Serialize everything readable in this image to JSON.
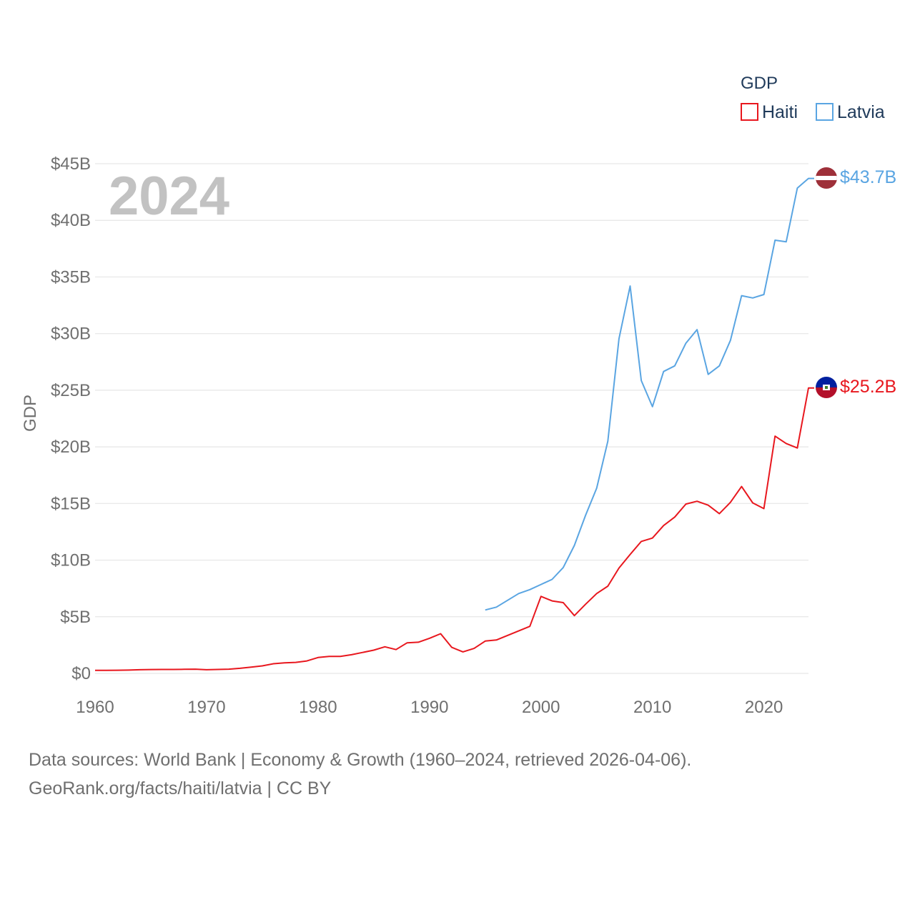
{
  "chart_data": {
    "type": "line",
    "title": "",
    "legend_title": "GDP",
    "ylabel": "GDP",
    "xlabel": "",
    "year_label": "2024",
    "xlim": [
      1960,
      2024
    ],
    "ylim": [
      0,
      45
    ],
    "y_ticks": [
      {
        "value": 0,
        "label": "$0"
      },
      {
        "value": 5,
        "label": "$5B"
      },
      {
        "value": 10,
        "label": "$10B"
      },
      {
        "value": 15,
        "label": "$15B"
      },
      {
        "value": 20,
        "label": "$20B"
      },
      {
        "value": 25,
        "label": "$25B"
      },
      {
        "value": 30,
        "label": "$30B"
      },
      {
        "value": 35,
        "label": "$35B"
      },
      {
        "value": 40,
        "label": "$40B"
      },
      {
        "value": 45,
        "label": "$45B"
      }
    ],
    "x_ticks": [
      {
        "value": 1960,
        "label": "1960"
      },
      {
        "value": 1970,
        "label": "1970"
      },
      {
        "value": 1980,
        "label": "1980"
      },
      {
        "value": 1990,
        "label": "1990"
      },
      {
        "value": 2000,
        "label": "2000"
      },
      {
        "value": 2010,
        "label": "2010"
      },
      {
        "value": 2020,
        "label": "2020"
      }
    ],
    "units": "USD billions",
    "series": [
      {
        "name": "Haiti",
        "color": "#e8171e",
        "end_label": "$25.2B",
        "flag": "haiti",
        "x": [
          1960,
          1961,
          1962,
          1963,
          1964,
          1965,
          1966,
          1967,
          1968,
          1969,
          1970,
          1971,
          1972,
          1973,
          1974,
          1975,
          1976,
          1977,
          1978,
          1979,
          1980,
          1981,
          1982,
          1983,
          1984,
          1985,
          1986,
          1987,
          1988,
          1989,
          1990,
          1991,
          1992,
          1993,
          1994,
          1995,
          1996,
          1997,
          1998,
          1999,
          2000,
          2001,
          2002,
          2003,
          2004,
          2005,
          2006,
          2007,
          2008,
          2009,
          2010,
          2011,
          2012,
          2013,
          2014,
          2015,
          2016,
          2017,
          2018,
          2019,
          2020,
          2021,
          2022,
          2023,
          2024
        ],
        "values": [
          0.27,
          0.27,
          0.28,
          0.29,
          0.32,
          0.34,
          0.35,
          0.35,
          0.36,
          0.37,
          0.32,
          0.35,
          0.37,
          0.45,
          0.55,
          0.66,
          0.85,
          0.93,
          0.97,
          1.1,
          1.4,
          1.5,
          1.5,
          1.65,
          1.85,
          2.05,
          2.35,
          2.1,
          2.7,
          2.75,
          3.1,
          3.5,
          2.3,
          1.9,
          2.2,
          2.85,
          2.95,
          3.35,
          3.75,
          4.15,
          6.8,
          6.4,
          6.25,
          5.1,
          6.1,
          7.05,
          7.7,
          9.3,
          10.5,
          11.65,
          11.95,
          13.05,
          13.8,
          14.95,
          15.2,
          14.85,
          14.1,
          15.1,
          16.5,
          15.05,
          14.55,
          20.95,
          20.3,
          19.9,
          25.2
        ]
      },
      {
        "name": "Latvia",
        "color": "#5aa5e2",
        "end_label": "$43.7B",
        "flag": "latvia",
        "x": [
          1995,
          1996,
          1997,
          1998,
          1999,
          2000,
          2001,
          2002,
          2003,
          2004,
          2005,
          2006,
          2007,
          2008,
          2009,
          2010,
          2011,
          2012,
          2013,
          2014,
          2015,
          2016,
          2017,
          2018,
          2019,
          2020,
          2021,
          2022,
          2023,
          2024
        ],
        "values": [
          5.6,
          5.85,
          6.45,
          7.05,
          7.4,
          7.85,
          8.3,
          9.35,
          11.3,
          13.95,
          16.35,
          20.5,
          29.55,
          34.2,
          25.85,
          23.55,
          26.65,
          27.15,
          29.15,
          30.35,
          26.4,
          27.15,
          29.4,
          33.35,
          33.15,
          33.45,
          38.25,
          38.1,
          42.85,
          43.7
        ]
      }
    ]
  },
  "footer": {
    "line1": "Data sources: World Bank | Economy & Growth (1960–2024, retrieved 2026-04-06).",
    "line2": "GeoRank.org/facts/haiti/latvia | CC BY"
  }
}
